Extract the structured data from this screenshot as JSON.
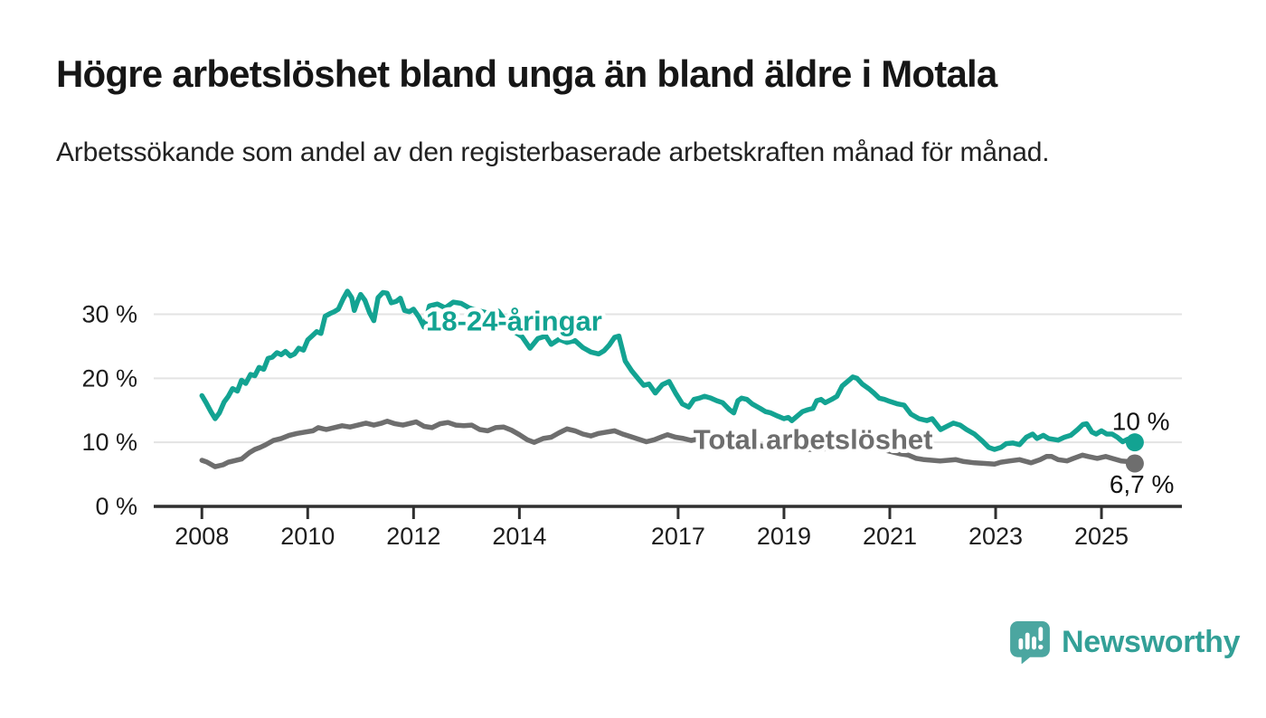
{
  "header": {
    "title": "Högre arbetslöshet bland unga än bland äldre i Motala",
    "subtitle": "Arbetssökande som andel av den registerbaserade arbetskraften månad för månad."
  },
  "footer": {
    "brand": "Newsworthy"
  },
  "colors": {
    "young_series": "#13a392",
    "total_series": "#6e6e6e",
    "gridline": "#e3e3e3",
    "axis": "#2f2f2f",
    "logo_teal": "#4ba6a0",
    "logo_text_teal": "#33a097"
  },
  "chart_data": {
    "type": "line",
    "unit": "%",
    "x_axis": {
      "range": [
        2007.09,
        2026.52
      ],
      "ticks": [
        2008,
        2010,
        2012,
        2014,
        2017,
        2019,
        2021,
        2023,
        2025
      ],
      "tick_labels": [
        "2008",
        "2010",
        "2012",
        "2014",
        "2017",
        "2019",
        "2021",
        "2023",
        "2025"
      ]
    },
    "y_axis": {
      "range": [
        0,
        35.3
      ],
      "ticks": [
        0,
        10,
        20,
        30
      ],
      "tick_labels": [
        "0 %",
        "10 %",
        "20 %",
        "30 %"
      ],
      "gridlines": true
    },
    "legend_position": "inline-labels",
    "series": [
      {
        "name": "18-24-åringar",
        "color": "#13a392",
        "label": {
          "text": "18-24-åringar",
          "x": 2013.9,
          "y": 29.0
        },
        "end_dot": true,
        "end_label": {
          "text": "10 %",
          "x": 2025.2,
          "y": 11.9
        },
        "last_value": 10.0,
        "points": [
          [
            2008.0,
            17.3
          ],
          [
            2008.08,
            16.2
          ],
          [
            2008.17,
            14.8
          ],
          [
            2008.25,
            13.7
          ],
          [
            2008.33,
            14.6
          ],
          [
            2008.42,
            16.3
          ],
          [
            2008.5,
            17.2
          ],
          [
            2008.58,
            18.4
          ],
          [
            2008.67,
            18.0
          ],
          [
            2008.75,
            19.7
          ],
          [
            2008.83,
            19.2
          ],
          [
            2008.92,
            20.6
          ],
          [
            2009.0,
            20.4
          ],
          [
            2009.08,
            21.7
          ],
          [
            2009.17,
            21.4
          ],
          [
            2009.25,
            23.1
          ],
          [
            2009.33,
            23.3
          ],
          [
            2009.42,
            24.0
          ],
          [
            2009.5,
            23.7
          ],
          [
            2009.58,
            24.2
          ],
          [
            2009.67,
            23.5
          ],
          [
            2009.75,
            23.8
          ],
          [
            2009.83,
            24.7
          ],
          [
            2009.92,
            24.4
          ],
          [
            2010.0,
            26.0
          ],
          [
            2010.08,
            26.6
          ],
          [
            2010.17,
            27.3
          ],
          [
            2010.25,
            27.0
          ],
          [
            2010.33,
            29.7
          ],
          [
            2010.42,
            30.1
          ],
          [
            2010.5,
            30.4
          ],
          [
            2010.58,
            30.8
          ],
          [
            2010.67,
            32.4
          ],
          [
            2010.75,
            33.6
          ],
          [
            2010.83,
            32.6
          ],
          [
            2010.88,
            30.6
          ],
          [
            2010.94,
            32.0
          ],
          [
            2011.0,
            33.1
          ],
          [
            2011.08,
            32.2
          ],
          [
            2011.17,
            30.2
          ],
          [
            2011.25,
            29.0
          ],
          [
            2011.33,
            32.6
          ],
          [
            2011.42,
            33.4
          ],
          [
            2011.5,
            33.3
          ],
          [
            2011.58,
            31.8
          ],
          [
            2011.67,
            32.0
          ],
          [
            2011.75,
            32.5
          ],
          [
            2011.83,
            30.6
          ],
          [
            2011.92,
            30.4
          ],
          [
            2012.0,
            30.8
          ],
          [
            2012.1,
            29.6
          ],
          [
            2012.2,
            28.0
          ],
          [
            2012.3,
            31.3
          ],
          [
            2012.45,
            31.6
          ],
          [
            2012.6,
            31.0
          ],
          [
            2012.75,
            31.9
          ],
          [
            2012.9,
            31.7
          ],
          [
            2013.05,
            31.0
          ],
          [
            2013.2,
            30.6
          ],
          [
            2013.4,
            30.2
          ],
          [
            2013.6,
            30.5
          ],
          [
            2013.75,
            28.8
          ],
          [
            2013.9,
            27.3
          ],
          [
            2014.05,
            26.5
          ],
          [
            2014.2,
            24.7
          ],
          [
            2014.35,
            26.2
          ],
          [
            2014.5,
            26.6
          ],
          [
            2014.6,
            25.3
          ],
          [
            2014.75,
            26.1
          ],
          [
            2014.9,
            25.6
          ],
          [
            2015.05,
            25.9
          ],
          [
            2015.2,
            24.8
          ],
          [
            2015.35,
            24.1
          ],
          [
            2015.5,
            23.8
          ],
          [
            2015.6,
            24.3
          ],
          [
            2015.7,
            25.2
          ],
          [
            2015.8,
            26.4
          ],
          [
            2015.88,
            26.6
          ],
          [
            2016.0,
            22.7
          ],
          [
            2016.12,
            21.2
          ],
          [
            2016.25,
            19.9
          ],
          [
            2016.35,
            18.9
          ],
          [
            2016.45,
            19.1
          ],
          [
            2016.57,
            17.7
          ],
          [
            2016.7,
            19.0
          ],
          [
            2016.83,
            19.5
          ],
          [
            2016.95,
            17.7
          ],
          [
            2017.08,
            16.0
          ],
          [
            2017.2,
            15.5
          ],
          [
            2017.3,
            16.7
          ],
          [
            2017.4,
            16.9
          ],
          [
            2017.5,
            17.2
          ],
          [
            2017.62,
            16.9
          ],
          [
            2017.73,
            16.5
          ],
          [
            2017.84,
            16.2
          ],
          [
            2017.97,
            15.1
          ],
          [
            2018.05,
            14.6
          ],
          [
            2018.13,
            16.5
          ],
          [
            2018.2,
            16.9
          ],
          [
            2018.3,
            16.7
          ],
          [
            2018.4,
            16.0
          ],
          [
            2018.55,
            15.3
          ],
          [
            2018.65,
            14.8
          ],
          [
            2018.75,
            14.6
          ],
          [
            2018.88,
            14.1
          ],
          [
            2019.0,
            13.7
          ],
          [
            2019.08,
            13.9
          ],
          [
            2019.15,
            13.4
          ],
          [
            2019.25,
            14.1
          ],
          [
            2019.35,
            14.8
          ],
          [
            2019.45,
            15.1
          ],
          [
            2019.55,
            15.3
          ],
          [
            2019.62,
            16.5
          ],
          [
            2019.7,
            16.7
          ],
          [
            2019.78,
            16.2
          ],
          [
            2019.9,
            16.7
          ],
          [
            2020.0,
            17.2
          ],
          [
            2020.1,
            18.8
          ],
          [
            2020.2,
            19.5
          ],
          [
            2020.3,
            20.2
          ],
          [
            2020.38,
            20.0
          ],
          [
            2020.48,
            19.1
          ],
          [
            2020.6,
            18.4
          ],
          [
            2020.7,
            17.7
          ],
          [
            2020.8,
            16.9
          ],
          [
            2020.9,
            16.7
          ],
          [
            2021.0,
            16.4
          ],
          [
            2021.15,
            16.0
          ],
          [
            2021.27,
            15.8
          ],
          [
            2021.4,
            14.4
          ],
          [
            2021.55,
            13.7
          ],
          [
            2021.7,
            13.4
          ],
          [
            2021.8,
            13.7
          ],
          [
            2021.96,
            12.0
          ],
          [
            2022.1,
            12.6
          ],
          [
            2022.2,
            13.0
          ],
          [
            2022.33,
            12.7
          ],
          [
            2022.45,
            12.0
          ],
          [
            2022.6,
            11.3
          ],
          [
            2022.75,
            10.2
          ],
          [
            2022.87,
            9.2
          ],
          [
            2022.98,
            8.9
          ],
          [
            2023.1,
            9.2
          ],
          [
            2023.2,
            9.8
          ],
          [
            2023.33,
            9.9
          ],
          [
            2023.45,
            9.65
          ],
          [
            2023.58,
            10.8
          ],
          [
            2023.7,
            11.3
          ],
          [
            2023.78,
            10.6
          ],
          [
            2023.9,
            11.1
          ],
          [
            2024.0,
            10.6
          ],
          [
            2024.18,
            10.35
          ],
          [
            2024.3,
            10.8
          ],
          [
            2024.42,
            11.1
          ],
          [
            2024.55,
            12.0
          ],
          [
            2024.65,
            12.8
          ],
          [
            2024.72,
            12.9
          ],
          [
            2024.82,
            11.6
          ],
          [
            2024.9,
            11.3
          ],
          [
            2025.0,
            11.8
          ],
          [
            2025.1,
            11.3
          ],
          [
            2025.2,
            11.3
          ],
          [
            2025.3,
            10.8
          ],
          [
            2025.4,
            10.1
          ],
          [
            2025.5,
            10.5
          ],
          [
            2025.63,
            10.0
          ]
        ]
      },
      {
        "name": "Total arbetslöshet",
        "color": "#6e6e6e",
        "label": {
          "text": "Total arbetslöshet",
          "x": 2019.55,
          "y": 10.55
        },
        "end_dot": true,
        "end_label": {
          "text": "6,7 %",
          "x": 2025.15,
          "y": 2.1
        },
        "last_value": 6.7,
        "points": [
          [
            2008.0,
            7.2
          ],
          [
            2008.1,
            6.9
          ],
          [
            2008.25,
            6.2
          ],
          [
            2008.4,
            6.5
          ],
          [
            2008.5,
            6.9
          ],
          [
            2008.6,
            7.1
          ],
          [
            2008.75,
            7.4
          ],
          [
            2008.9,
            8.4
          ],
          [
            2009.0,
            8.9
          ],
          [
            2009.1,
            9.2
          ],
          [
            2009.2,
            9.6
          ],
          [
            2009.35,
            10.3
          ],
          [
            2009.5,
            10.6
          ],
          [
            2009.65,
            11.1
          ],
          [
            2009.8,
            11.4
          ],
          [
            2009.95,
            11.6
          ],
          [
            2010.1,
            11.8
          ],
          [
            2010.2,
            12.3
          ],
          [
            2010.35,
            12.0
          ],
          [
            2010.5,
            12.3
          ],
          [
            2010.65,
            12.6
          ],
          [
            2010.8,
            12.4
          ],
          [
            2010.95,
            12.7
          ],
          [
            2011.1,
            13.0
          ],
          [
            2011.25,
            12.7
          ],
          [
            2011.4,
            13.0
          ],
          [
            2011.5,
            13.3
          ],
          [
            2011.65,
            12.9
          ],
          [
            2011.8,
            12.7
          ],
          [
            2011.95,
            13.0
          ],
          [
            2012.05,
            13.2
          ],
          [
            2012.2,
            12.5
          ],
          [
            2012.35,
            12.3
          ],
          [
            2012.5,
            12.9
          ],
          [
            2012.65,
            13.1
          ],
          [
            2012.8,
            12.7
          ],
          [
            2012.95,
            12.6
          ],
          [
            2013.1,
            12.7
          ],
          [
            2013.25,
            12.0
          ],
          [
            2013.4,
            11.8
          ],
          [
            2013.55,
            12.3
          ],
          [
            2013.7,
            12.4
          ],
          [
            2013.85,
            11.9
          ],
          [
            2014.0,
            11.2
          ],
          [
            2014.15,
            10.4
          ],
          [
            2014.28,
            10.0
          ],
          [
            2014.45,
            10.6
          ],
          [
            2014.6,
            10.8
          ],
          [
            2014.75,
            11.5
          ],
          [
            2014.9,
            12.1
          ],
          [
            2015.05,
            11.8
          ],
          [
            2015.2,
            11.3
          ],
          [
            2015.35,
            11.0
          ],
          [
            2015.5,
            11.4
          ],
          [
            2015.65,
            11.6
          ],
          [
            2015.8,
            11.8
          ],
          [
            2015.95,
            11.3
          ],
          [
            2016.1,
            10.9
          ],
          [
            2016.25,
            10.5
          ],
          [
            2016.4,
            10.1
          ],
          [
            2016.55,
            10.4
          ],
          [
            2016.7,
            10.9
          ],
          [
            2016.8,
            11.2
          ],
          [
            2016.95,
            10.8
          ],
          [
            2017.1,
            10.6
          ],
          [
            2017.25,
            10.3
          ],
          [
            2017.4,
            10.6
          ],
          [
            2017.6,
            10.3
          ],
          [
            2017.8,
            10.1
          ],
          [
            2018.0,
            9.9
          ],
          [
            2018.3,
            9.7
          ],
          [
            2018.6,
            9.4
          ],
          [
            2018.9,
            9.2
          ],
          [
            2019.2,
            9.0
          ],
          [
            2019.5,
            8.9
          ],
          [
            2019.8,
            9.0
          ],
          [
            2020.1,
            9.4
          ],
          [
            2020.3,
            9.7
          ],
          [
            2020.5,
            9.5
          ],
          [
            2020.8,
            9.0
          ],
          [
            2021.0,
            8.6
          ],
          [
            2021.2,
            8.2
          ],
          [
            2021.35,
            8.0
          ],
          [
            2021.5,
            7.5
          ],
          [
            2021.65,
            7.3
          ],
          [
            2021.8,
            7.2
          ],
          [
            2021.95,
            7.1
          ],
          [
            2022.1,
            7.2
          ],
          [
            2022.25,
            7.3
          ],
          [
            2022.4,
            7.0
          ],
          [
            2022.6,
            6.8
          ],
          [
            2022.8,
            6.7
          ],
          [
            2022.98,
            6.6
          ],
          [
            2023.1,
            6.9
          ],
          [
            2023.27,
            7.1
          ],
          [
            2023.45,
            7.3
          ],
          [
            2023.67,
            6.8
          ],
          [
            2023.84,
            7.3
          ],
          [
            2023.96,
            7.8
          ],
          [
            2024.06,
            7.8
          ],
          [
            2024.18,
            7.3
          ],
          [
            2024.35,
            7.1
          ],
          [
            2024.47,
            7.5
          ],
          [
            2024.64,
            8.0
          ],
          [
            2024.75,
            7.8
          ],
          [
            2024.92,
            7.5
          ],
          [
            2025.08,
            7.8
          ],
          [
            2025.2,
            7.5
          ],
          [
            2025.37,
            7.1
          ],
          [
            2025.5,
            7.0
          ],
          [
            2025.63,
            6.7
          ]
        ]
      }
    ]
  }
}
